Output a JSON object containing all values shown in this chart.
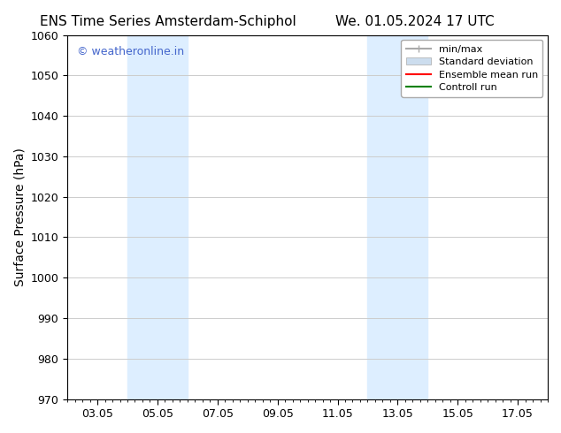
{
  "title_left": "ENS Time Series Amsterdam-Schiphol",
  "title_right": "We. 01.05.2024 17 UTC",
  "ylabel": "Surface Pressure (hPa)",
  "ylim": [
    970,
    1060
  ],
  "yticks": [
    970,
    980,
    990,
    1000,
    1010,
    1020,
    1030,
    1040,
    1050,
    1060
  ],
  "xlim": [
    0,
    16
  ],
  "xtick_positions": [
    1,
    3,
    5,
    7,
    9,
    11,
    13,
    15
  ],
  "xtick_labels": [
    "03.05",
    "05.05",
    "07.05",
    "09.05",
    "11.05",
    "13.05",
    "15.05",
    "17.05"
  ],
  "shaded_regions": [
    {
      "xmin": 2.0,
      "xmax": 4.0
    },
    {
      "xmin": 10.0,
      "xmax": 12.0
    }
  ],
  "shaded_color": "#ddeeff",
  "watermark_text": "© weatheronline.in",
  "watermark_color": "#4466cc",
  "background_color": "#ffffff",
  "legend_items": [
    {
      "label": "min/max",
      "color": "#aaaaaa",
      "linestyle": "-",
      "linewidth": 1.5
    },
    {
      "label": "Standard deviation",
      "color": "#ccddee",
      "linestyle": "-",
      "linewidth": 6
    },
    {
      "label": "Ensemble mean run",
      "color": "#ff0000",
      "linestyle": "-",
      "linewidth": 1.5
    },
    {
      "label": "Controll run",
      "color": "#008000",
      "linestyle": "-",
      "linewidth": 1.5
    }
  ],
  "grid_color": "#cccccc",
  "spine_color": "#000000",
  "tick_color": "#000000",
  "title_fontsize": 11,
  "label_fontsize": 10,
  "tick_fontsize": 9
}
